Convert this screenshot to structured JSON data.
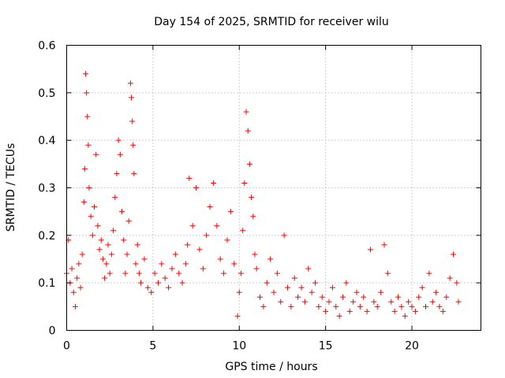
{
  "chart_data": {
    "type": "scatter",
    "title": "Day 154 of 2025, SRMTID for receiver wilu",
    "xlabel": "GPS time / hours",
    "ylabel": "SRMTID / TECUs",
    "xlim": [
      0,
      24
    ],
    "ylim": [
      0,
      0.6
    ],
    "xticks": [
      0,
      5,
      10,
      15,
      20
    ],
    "xtick_labels": [
      "0",
      "5",
      "10",
      "15",
      "20"
    ],
    "yticks": [
      0,
      0.1,
      0.2,
      0.3,
      0.4,
      0.5,
      0.6
    ],
    "ytick_labels": [
      "0",
      "0.1",
      "0.2",
      "0.3",
      "0.4",
      "0.5",
      "0.6"
    ],
    "grid": true,
    "marker": "+",
    "color": "#ff0000",
    "series": [
      {
        "name": "SRMTID",
        "x": [
          0.0,
          0.1,
          0.2,
          0.3,
          0.4,
          0.5,
          0.6,
          0.7,
          0.8,
          0.9,
          1.0,
          1.05,
          1.1,
          1.15,
          1.2,
          1.25,
          1.3,
          1.4,
          1.5,
          1.6,
          1.7,
          1.8,
          1.9,
          2.0,
          2.1,
          2.2,
          2.3,
          2.4,
          2.5,
          2.6,
          2.7,
          2.8,
          2.9,
          3.0,
          3.1,
          3.2,
          3.3,
          3.4,
          3.5,
          3.6,
          3.7,
          3.75,
          3.8,
          3.85,
          3.9,
          4.0,
          4.1,
          4.2,
          4.3,
          4.5,
          4.7,
          4.9,
          5.1,
          5.3,
          5.5,
          5.7,
          5.9,
          6.1,
          6.3,
          6.5,
          6.7,
          6.9,
          7.0,
          7.1,
          7.3,
          7.5,
          7.7,
          7.9,
          8.1,
          8.3,
          8.5,
          8.7,
          8.9,
          9.1,
          9.3,
          9.5,
          9.7,
          9.9,
          10.0,
          10.1,
          10.2,
          10.3,
          10.4,
          10.5,
          10.6,
          10.7,
          10.8,
          10.9,
          11.0,
          11.2,
          11.4,
          11.6,
          11.8,
          12.0,
          12.2,
          12.4,
          12.6,
          12.8,
          13.0,
          13.2,
          13.4,
          13.6,
          13.8,
          14.0,
          14.2,
          14.4,
          14.6,
          14.8,
          15.0,
          15.2,
          15.4,
          15.6,
          15.8,
          16.0,
          16.2,
          16.4,
          16.6,
          16.8,
          17.0,
          17.2,
          17.4,
          17.6,
          17.8,
          18.0,
          18.2,
          18.4,
          18.6,
          18.8,
          19.0,
          19.2,
          19.4,
          19.6,
          19.8,
          20.0,
          20.2,
          20.4,
          20.6,
          20.8,
          21.0,
          21.2,
          21.4,
          21.6,
          21.8,
          22.0,
          22.2,
          22.4,
          22.6,
          22.7
        ],
        "y": [
          0.12,
          0.19,
          0.1,
          0.13,
          0.08,
          0.05,
          0.11,
          0.14,
          0.09,
          0.16,
          0.27,
          0.34,
          0.54,
          0.5,
          0.45,
          0.39,
          0.3,
          0.24,
          0.2,
          0.26,
          0.37,
          0.22,
          0.17,
          0.19,
          0.15,
          0.11,
          0.14,
          0.18,
          0.12,
          0.16,
          0.21,
          0.28,
          0.33,
          0.4,
          0.37,
          0.25,
          0.19,
          0.12,
          0.16,
          0.23,
          0.52,
          0.49,
          0.44,
          0.39,
          0.33,
          0.14,
          0.18,
          0.12,
          0.1,
          0.15,
          0.09,
          0.08,
          0.12,
          0.1,
          0.14,
          0.11,
          0.09,
          0.13,
          0.16,
          0.12,
          0.1,
          0.14,
          0.18,
          0.32,
          0.22,
          0.3,
          0.17,
          0.13,
          0.2,
          0.26,
          0.31,
          0.22,
          0.15,
          0.12,
          0.19,
          0.25,
          0.14,
          0.03,
          0.08,
          0.12,
          0.21,
          0.31,
          0.46,
          0.42,
          0.35,
          0.28,
          0.24,
          0.16,
          0.13,
          0.07,
          0.05,
          0.1,
          0.15,
          0.08,
          0.12,
          0.06,
          0.2,
          0.09,
          0.05,
          0.11,
          0.07,
          0.09,
          0.06,
          0.13,
          0.08,
          0.1,
          0.05,
          0.07,
          0.04,
          0.06,
          0.09,
          0.05,
          0.03,
          0.07,
          0.1,
          0.04,
          0.06,
          0.08,
          0.05,
          0.07,
          0.04,
          0.17,
          0.06,
          0.05,
          0.08,
          0.18,
          0.12,
          0.06,
          0.04,
          0.07,
          0.05,
          0.03,
          0.06,
          0.05,
          0.04,
          0.07,
          0.09,
          0.05,
          0.12,
          0.06,
          0.08,
          0.05,
          0.04,
          0.07,
          0.11,
          0.16,
          0.1,
          0.06
        ]
      }
    ]
  }
}
